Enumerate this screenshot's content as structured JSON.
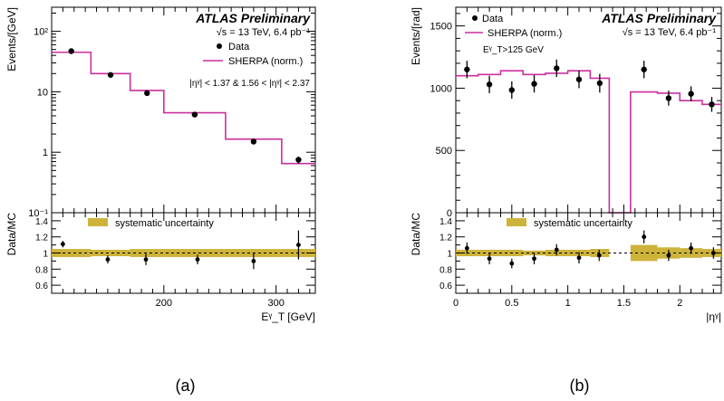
{
  "chart_data": [
    {
      "panel": "a",
      "type": "step-with-points",
      "caption": "(a)",
      "title": "ATLAS Preliminary",
      "energy_text": "√s = 13 TeV, 6.4 pb⁻¹",
      "region_text": "|ηᵞ| < 1.37 & 1.56 < |ηᵞ| < 2.37",
      "xlabel": "Eᵞ_T [GeV]",
      "ylabel": "Events/[GeV]",
      "yscale": "log",
      "xlim": [
        100,
        335
      ],
      "ylim": [
        0.1,
        250
      ],
      "x_ticks": [
        "200",
        "300"
      ],
      "y_ticks": [
        "10⁻¹",
        "1",
        "10",
        "10²"
      ],
      "legend": {
        "data_label": "Data",
        "mc_label": "SHERPA (norm.)",
        "placement": "top-right"
      },
      "bins": [
        {
          "lo": 100,
          "hi": 135,
          "mc": 45,
          "data": 47,
          "err": 1.5
        },
        {
          "lo": 135,
          "hi": 170,
          "mc": 20,
          "data": 19,
          "err": 0.8
        },
        {
          "lo": 170,
          "hi": 200,
          "mc": 10.5,
          "data": 9.5,
          "err": 0.5
        },
        {
          "lo": 200,
          "hi": 255,
          "mc": 4.5,
          "data": 4.2,
          "err": 0.25
        },
        {
          "lo": 255,
          "hi": 305,
          "mc": 1.65,
          "data": 1.5,
          "err": 0.15
        },
        {
          "lo": 305,
          "hi": 335,
          "mc": 0.65,
          "data": 0.75,
          "err": 0.1
        }
      ],
      "ratio": {
        "ylabel": "Data/MC",
        "ylim": [
          0.5,
          1.5
        ],
        "y_ticks": [
          "0.6",
          "0.8",
          "1",
          "1.2",
          "1.4"
        ],
        "legend_label": "systematic uncertainty",
        "band_color": "#cdb33a",
        "bins": [
          {
            "lo": 100,
            "hi": 135,
            "band": 0.05
          },
          {
            "lo": 135,
            "hi": 170,
            "band": 0.04
          },
          {
            "lo": 170,
            "hi": 200,
            "band": 0.05
          },
          {
            "lo": 200,
            "hi": 255,
            "band": 0.05
          },
          {
            "lo": 255,
            "hi": 305,
            "band": 0.05
          },
          {
            "lo": 305,
            "hi": 335,
            "band": 0.05
          }
        ],
        "points": [
          {
            "x": 110,
            "y": 1.11,
            "err": 0.04
          },
          {
            "x": 150,
            "y": 0.92,
            "err": 0.05
          },
          {
            "x": 184,
            "y": 0.92,
            "err": 0.07
          },
          {
            "x": 230,
            "y": 0.92,
            "err": 0.06
          },
          {
            "x": 280,
            "y": 0.9,
            "err": 0.1
          },
          {
            "x": 320,
            "y": 1.1,
            "err": 0.18
          }
        ]
      }
    },
    {
      "panel": "b",
      "type": "step-with-points",
      "caption": "(b)",
      "title": "ATLAS Preliminary",
      "energy_text": "√s = 13 TeV, 6.4 pb⁻¹",
      "cut_text": "Eᵞ_T>125 GeV",
      "xlabel": "|ηᵞ|",
      "ylabel": "Events/[rad]",
      "yscale": "linear",
      "xlim": [
        0,
        2.37
      ],
      "ylim": [
        0,
        1650
      ],
      "x_ticks": [
        "0",
        "0.5",
        "1",
        "1.5",
        "2"
      ],
      "y_ticks": [
        "0",
        "500",
        "1000",
        "1500"
      ],
      "legend": {
        "data_label": "Data",
        "mc_label": "SHERPA (norm.)",
        "placement": "top-left"
      },
      "bins": [
        {
          "lo": 0.0,
          "hi": 0.2,
          "mc": 1100,
          "data": 1150,
          "err": 70
        },
        {
          "lo": 0.2,
          "hi": 0.4,
          "mc": 1110,
          "data": 1030,
          "err": 70
        },
        {
          "lo": 0.4,
          "hi": 0.6,
          "mc": 1140,
          "data": 985,
          "err": 70
        },
        {
          "lo": 0.6,
          "hi": 0.8,
          "mc": 1110,
          "data": 1035,
          "err": 70
        },
        {
          "lo": 0.8,
          "hi": 1.0,
          "mc": 1120,
          "data": 1160,
          "err": 70
        },
        {
          "lo": 1.0,
          "hi": 1.2,
          "mc": 1140,
          "data": 1070,
          "err": 70
        },
        {
          "lo": 1.2,
          "hi": 1.37,
          "mc": 1080,
          "data": 1040,
          "err": 75
        },
        {
          "lo": 1.37,
          "hi": 1.56,
          "mc": 0,
          "data": null,
          "err": 0
        },
        {
          "lo": 1.56,
          "hi": 1.8,
          "mc": 970,
          "data": 1150,
          "err": 70
        },
        {
          "lo": 1.8,
          "hi": 2.0,
          "mc": 960,
          "data": 920,
          "err": 60
        },
        {
          "lo": 2.0,
          "hi": 2.2,
          "mc": 900,
          "data": 955,
          "err": 60
        },
        {
          "lo": 2.2,
          "hi": 2.37,
          "mc": 870,
          "data": 870,
          "err": 60
        }
      ],
      "ratio": {
        "ylabel": "Data/MC",
        "ylim": [
          0.5,
          1.5
        ],
        "y_ticks": [
          "0.6",
          "0.8",
          "1",
          "1.2",
          "1.4"
        ],
        "legend_label": "systematic uncertainty",
        "band_color": "#cdb33a",
        "bins": [
          {
            "lo": 0.0,
            "hi": 0.2,
            "band": 0.04
          },
          {
            "lo": 0.2,
            "hi": 0.4,
            "band": 0.04
          },
          {
            "lo": 0.4,
            "hi": 0.6,
            "band": 0.04
          },
          {
            "lo": 0.6,
            "hi": 0.8,
            "band": 0.03
          },
          {
            "lo": 0.8,
            "hi": 1.0,
            "band": 0.04
          },
          {
            "lo": 1.0,
            "hi": 1.2,
            "band": 0.04
          },
          {
            "lo": 1.2,
            "hi": 1.37,
            "band": 0.05
          },
          {
            "lo": 1.56,
            "hi": 1.8,
            "band": 0.1
          },
          {
            "lo": 1.8,
            "hi": 2.0,
            "band": 0.07
          },
          {
            "lo": 2.0,
            "hi": 2.2,
            "band": 0.06
          },
          {
            "lo": 2.2,
            "hi": 2.37,
            "band": 0.05
          }
        ],
        "points": [
          {
            "x": 0.1,
            "y": 1.06,
            "err": 0.07
          },
          {
            "x": 0.3,
            "y": 0.93,
            "err": 0.07
          },
          {
            "x": 0.5,
            "y": 0.87,
            "err": 0.06
          },
          {
            "x": 0.7,
            "y": 0.93,
            "err": 0.07
          },
          {
            "x": 0.9,
            "y": 1.04,
            "err": 0.07
          },
          {
            "x": 1.1,
            "y": 0.94,
            "err": 0.07
          },
          {
            "x": 1.28,
            "y": 0.97,
            "err": 0.07
          },
          {
            "x": 1.68,
            "y": 1.2,
            "err": 0.08
          },
          {
            "x": 1.9,
            "y": 0.97,
            "err": 0.07
          },
          {
            "x": 2.1,
            "y": 1.06,
            "err": 0.07
          },
          {
            "x": 2.3,
            "y": 1.0,
            "err": 0.07
          }
        ]
      }
    }
  ]
}
